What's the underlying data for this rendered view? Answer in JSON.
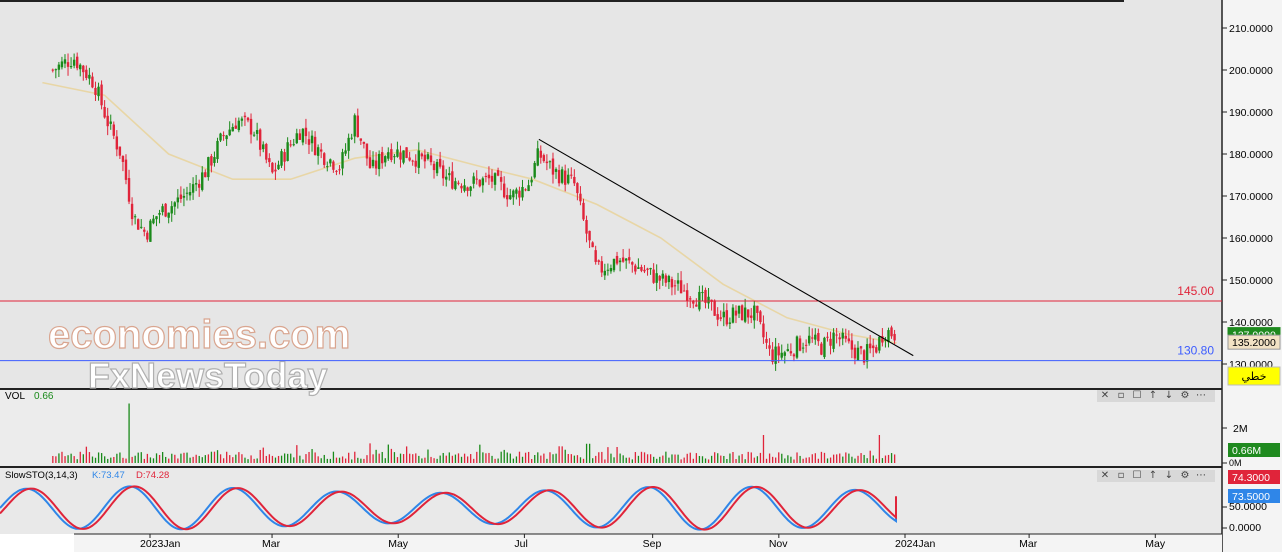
{
  "chart_data": [
    {
      "type": "candlestick",
      "panel": "price",
      "x_ticks": [
        "2023Jan",
        "Mar",
        "May",
        "Jul",
        "Sep",
        "Nov",
        "2024Jan",
        "Mar",
        "May"
      ],
      "y_ticks": [
        "210.0000",
        "200.0000",
        "190.0000",
        "180.0000",
        "170.0000",
        "160.0000",
        "150.0000",
        "140.0000",
        "130.0000"
      ],
      "ylim": [
        128.5,
        213.5
      ],
      "grid": false,
      "series": [
        {
          "name": "",
          "color_up": "#1a8a1a",
          "color_down": "#e0243a",
          "values": [
            {
              "x": "2022-11-15",
              "y": 200
            },
            {
              "x": "2022-11-25",
              "y": 203
            },
            {
              "x": "2022-12-05",
              "y": 197
            },
            {
              "x": "2022-12-12",
              "y": 187
            },
            {
              "x": "2022-12-18",
              "y": 180
            },
            {
              "x": "2022-12-24",
              "y": 165
            },
            {
              "x": "2022-12-30",
              "y": 161
            },
            {
              "x": "2023-01-05",
              "y": 166
            },
            {
              "x": "2023-01-12",
              "y": 168
            },
            {
              "x": "2023-01-20",
              "y": 171
            },
            {
              "x": "2023-01-28",
              "y": 176
            },
            {
              "x": "2023-02-05",
              "y": 184
            },
            {
              "x": "2023-02-12",
              "y": 188
            },
            {
              "x": "2023-02-20",
              "y": 186
            },
            {
              "x": "2023-03-01",
              "y": 175
            },
            {
              "x": "2023-03-08",
              "y": 181
            },
            {
              "x": "2023-03-15",
              "y": 186
            },
            {
              "x": "2023-03-25",
              "y": 180
            },
            {
              "x": "2023-04-03",
              "y": 177
            },
            {
              "x": "2023-04-10",
              "y": 188
            },
            {
              "x": "2023-04-18",
              "y": 176
            },
            {
              "x": "2023-04-26",
              "y": 181
            },
            {
              "x": "2023-05-05",
              "y": 180
            },
            {
              "x": "2023-05-15",
              "y": 178
            },
            {
              "x": "2023-05-25",
              "y": 174
            },
            {
              "x": "2023-06-05",
              "y": 173
            },
            {
              "x": "2023-06-15",
              "y": 174
            },
            {
              "x": "2023-06-25",
              "y": 170
            },
            {
              "x": "2023-07-03",
              "y": 173
            },
            {
              "x": "2023-07-08",
              "y": 180
            },
            {
              "x": "2023-07-15",
              "y": 176
            },
            {
              "x": "2023-07-25",
              "y": 173
            },
            {
              "x": "2023-07-30",
              "y": 163
            },
            {
              "x": "2023-08-05",
              "y": 152
            },
            {
              "x": "2023-08-15",
              "y": 155
            },
            {
              "x": "2023-08-25",
              "y": 153
            },
            {
              "x": "2023-09-05",
              "y": 150
            },
            {
              "x": "2023-09-15",
              "y": 148
            },
            {
              "x": "2023-09-25",
              "y": 145
            },
            {
              "x": "2023-10-05",
              "y": 141
            },
            {
              "x": "2023-10-12",
              "y": 142
            },
            {
              "x": "2023-10-20",
              "y": 142
            },
            {
              "x": "2023-10-28",
              "y": 132
            },
            {
              "x": "2023-11-05",
              "y": 133
            },
            {
              "x": "2023-11-15",
              "y": 136
            },
            {
              "x": "2023-11-22",
              "y": 134
            },
            {
              "x": "2023-11-28",
              "y": 137
            },
            {
              "x": "2023-12-05",
              "y": 134
            },
            {
              "x": "2023-12-12",
              "y": 132
            },
            {
              "x": "2023-12-18",
              "y": 134
            },
            {
              "x": "2023-12-22",
              "y": 138
            },
            {
              "x": "2023-12-28",
              "y": 137
            }
          ]
        }
      ],
      "moving_average": {
        "color": "#e8d6a6",
        "values": [
          {
            "x": "2022-11-10",
            "y": 197
          },
          {
            "x": "2022-12-10",
            "y": 194
          },
          {
            "x": "2023-01-10",
            "y": 180
          },
          {
            "x": "2023-02-10",
            "y": 174
          },
          {
            "x": "2023-03-10",
            "y": 174
          },
          {
            "x": "2023-04-10",
            "y": 179
          },
          {
            "x": "2023-05-10",
            "y": 181
          },
          {
            "x": "2023-06-10",
            "y": 177
          },
          {
            "x": "2023-07-05",
            "y": 174
          },
          {
            "x": "2023-08-05",
            "y": 168
          },
          {
            "x": "2023-09-05",
            "y": 160
          },
          {
            "x": "2023-10-05",
            "y": 149
          },
          {
            "x": "2023-11-05",
            "y": 141
          },
          {
            "x": "2023-12-05",
            "y": 137
          },
          {
            "x": "2023-12-28",
            "y": 135
          }
        ]
      },
      "trendline": {
        "color": "#000000",
        "from": {
          "x": "2023-07-08",
          "y": 183.5
        },
        "to": {
          "x": "2024-01-05",
          "y": 132
        }
      },
      "hlines": [
        {
          "label": "145.00",
          "y": 145.0,
          "color": "#e0243a"
        },
        {
          "label": "130.80",
          "y": 130.8,
          "color": "#3c5cff"
        }
      ],
      "price_tags": [
        {
          "label": "137.0000",
          "y": 137.0,
          "style": "green"
        },
        {
          "label": "135.2000",
          "y": 135.2,
          "style": "beige"
        }
      ],
      "drawing_tag": {
        "label": "خطي"
      }
    },
    {
      "type": "bar",
      "panel": "volume",
      "title": "VOL",
      "current_value": "0.66",
      "y_ticks": [
        "2M",
        "0M"
      ],
      "price_tag": "0.66M",
      "values": [
        {
          "x": "2022-12-22",
          "v": 3.4
        },
        {
          "x": "2023-08-01",
          "v": 1.1
        },
        {
          "x": "2023-10-25",
          "v": 1.6
        },
        {
          "x": "2023-12-20",
          "v": 1.1
        },
        {
          "x": "2023-12-28",
          "v": 0.66
        }
      ]
    },
    {
      "type": "line",
      "panel": "oscillator",
      "title": "SlowSTO(3,14,3)",
      "k_label": "K:73.47",
      "d_label": "D:74.28",
      "y_ticks": [
        "50.0000",
        "0.0000"
      ],
      "tag_d": "74.3000",
      "tag_k": "73.5000",
      "k_color": "#2f86e8",
      "d_color": "#e0243a",
      "k_last": 73.47,
      "d_last": 74.28
    }
  ],
  "watermark": {
    "line1": "economies.com",
    "line2": "FxNewsToday"
  }
}
